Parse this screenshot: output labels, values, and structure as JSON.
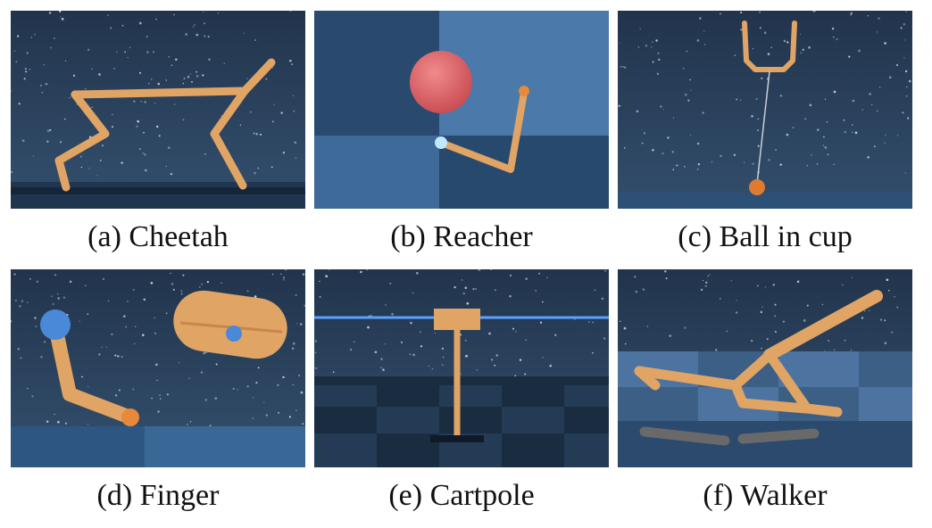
{
  "colors": {
    "sky": "#2a3e58",
    "sky_dark": "#1b2a40",
    "floor": "#2d4e72",
    "body": "#e0a464",
    "body_shade": "#c8874a",
    "accent_blue": "#4a88d8",
    "target_red": "#e06266",
    "tip_orange": "#e8883a"
  },
  "panels": [
    {
      "id": "cheetah",
      "caption": "(a) Cheetah"
    },
    {
      "id": "reacher",
      "caption": "(b) Reacher"
    },
    {
      "id": "ball_in_cup",
      "caption": "(c) Ball in cup"
    },
    {
      "id": "finger",
      "caption": "(d) Finger"
    },
    {
      "id": "cartpole",
      "caption": "(e) Cartpole"
    },
    {
      "id": "walker",
      "caption": "(f) Walker"
    }
  ]
}
